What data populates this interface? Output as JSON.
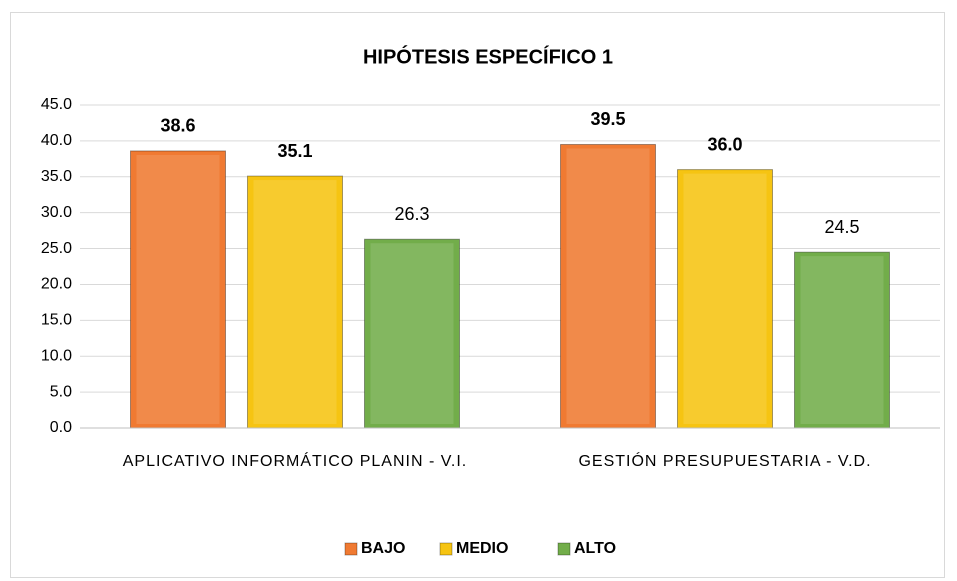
{
  "chart_data": {
    "type": "bar",
    "title": "HIPÓTESIS ESPECÍFICO 1",
    "categories": [
      "APLICATIVO INFORMÁTICO PLANIN  - V.I.",
      "GESTIÓN PRESUPUESTARIA - V.D."
    ],
    "series": [
      {
        "name": "BAJO",
        "color": "#f07a32",
        "values": [
          38.6,
          39.5
        ],
        "value_labels": [
          "38.6",
          "39.5"
        ]
      },
      {
        "name": "MEDIO",
        "color": "#f6c412",
        "values": [
          35.1,
          36.0
        ],
        "value_labels": [
          "35.1",
          "36.0"
        ]
      },
      {
        "name": "ALTO",
        "color": "#72ad4a",
        "values": [
          26.3,
          24.5
        ],
        "value_labels": [
          "26.3",
          "24.5"
        ]
      }
    ],
    "ylim": [
      0,
      45
    ],
    "yticks": [
      {
        "value": 0,
        "label": "0.0"
      },
      {
        "value": 5,
        "label": "5.0"
      },
      {
        "value": 10,
        "label": "10.0"
      },
      {
        "value": 15,
        "label": "15.0"
      },
      {
        "value": 20,
        "label": "20.0"
      },
      {
        "value": 25,
        "label": "25.0"
      },
      {
        "value": 30,
        "label": "30.0"
      },
      {
        "value": 35,
        "label": "35.0"
      },
      {
        "value": 40,
        "label": "40.0"
      },
      {
        "value": 45,
        "label": "45.0"
      }
    ],
    "grid": true,
    "legend": "bottom"
  }
}
